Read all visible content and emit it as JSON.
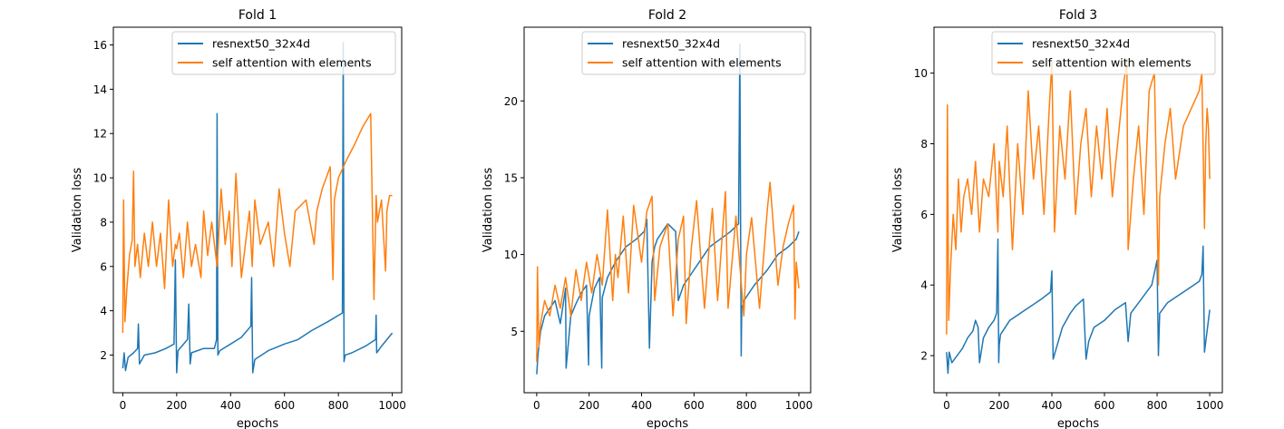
{
  "series_colors": [
    "#1f77b4",
    "#ff7f0e"
  ],
  "chart_data": [
    {
      "type": "line",
      "title": "Fold 1",
      "xlabel": "epochs",
      "ylabel": "Validation loss",
      "xlim": [
        -35,
        1035
      ],
      "ylim": [
        0.3,
        16.8
      ],
      "xticks": [
        0,
        200,
        400,
        600,
        800,
        1000
      ],
      "yticks": [
        2,
        4,
        6,
        8,
        10,
        12,
        14,
        16
      ],
      "legend": [
        "resnext50_32x4d",
        "self attention with elements"
      ],
      "legend_position": "upper right",
      "series": [
        {
          "name": "resnext50_32x4d",
          "x": [
            0,
            5,
            10,
            20,
            40,
            55,
            58,
            62,
            80,
            120,
            160,
            190,
            195,
            200,
            205,
            240,
            245,
            250,
            255,
            300,
            340,
            348,
            350,
            353,
            360,
            400,
            440,
            475,
            478,
            482,
            490,
            540,
            600,
            650,
            700,
            760,
            815,
            818,
            821,
            825,
            850,
            900,
            938,
            940,
            942,
            960,
            1000
          ],
          "y": [
            1.4,
            2.1,
            1.3,
            1.9,
            2.1,
            2.3,
            3.4,
            1.6,
            2.0,
            2.1,
            2.3,
            2.5,
            6.3,
            1.2,
            2.2,
            2.7,
            4.3,
            1.6,
            2.1,
            2.3,
            2.3,
            2.7,
            12.9,
            2.0,
            2.2,
            2.5,
            2.8,
            3.3,
            5.5,
            1.2,
            1.8,
            2.2,
            2.5,
            2.7,
            3.1,
            3.5,
            3.9,
            16.1,
            1.7,
            2.0,
            2.1,
            2.4,
            2.7,
            3.8,
            2.1,
            2.4,
            3.0
          ]
        },
        {
          "name": "self attention with elements",
          "x": [
            0,
            3,
            8,
            15,
            25,
            35,
            40,
            45,
            55,
            65,
            80,
            95,
            110,
            125,
            140,
            155,
            170,
            185,
            195,
            200,
            210,
            225,
            240,
            255,
            270,
            290,
            300,
            315,
            330,
            350,
            365,
            380,
            395,
            405,
            420,
            440,
            460,
            470,
            480,
            490,
            510,
            540,
            560,
            580,
            600,
            620,
            640,
            680,
            710,
            720,
            740,
            770,
            780,
            785,
            800,
            830,
            860,
            890,
            920,
            932,
            940,
            945,
            960,
            975,
            980,
            990,
            1000
          ],
          "y": [
            3.0,
            9.0,
            3.5,
            5.0,
            6.5,
            7.2,
            10.3,
            6.0,
            7.0,
            5.5,
            7.5,
            6.0,
            8.0,
            6.0,
            7.5,
            5.0,
            9.0,
            6.0,
            7.0,
            6.8,
            7.5,
            5.5,
            8.0,
            6.0,
            7.0,
            5.5,
            8.5,
            6.5,
            8.0,
            6.0,
            9.5,
            7.0,
            8.5,
            6.0,
            10.2,
            5.5,
            7.5,
            8.5,
            6.0,
            9.0,
            7.0,
            8.0,
            6.0,
            9.5,
            7.5,
            6.0,
            8.5,
            9.0,
            7.0,
            8.5,
            9.5,
            10.5,
            5.4,
            9.0,
            10.0,
            10.8,
            11.5,
            12.3,
            12.9,
            4.5,
            9.2,
            8.0,
            9.0,
            5.8,
            8.5,
            9.2,
            9.2
          ]
        }
      ]
    },
    {
      "type": "line",
      "title": "Fold 2",
      "xlabel": "epochs",
      "ylabel": "Validation loss",
      "xlim": [
        -48,
        1045
      ],
      "ylim": [
        1.0,
        24.8
      ],
      "xticks": [
        0,
        200,
        400,
        600,
        800,
        1000
      ],
      "yticks": [
        5,
        10,
        15,
        20
      ],
      "legend": [
        "resnext50_32x4d",
        "self attention with elements"
      ],
      "legend_position": "upper right",
      "series": [
        {
          "name": "resnext50_32x4d",
          "x": [
            0,
            5,
            15,
            30,
            50,
            70,
            90,
            110,
            112,
            130,
            150,
            170,
            190,
            198,
            200,
            220,
            240,
            248,
            250,
            270,
            300,
            340,
            380,
            410,
            420,
            430,
            440,
            450,
            460,
            480,
            500,
            530,
            540,
            560,
            580,
            600,
            620,
            640,
            660,
            700,
            740,
            770,
            775,
            778,
            780,
            782,
            790,
            830,
            880,
            920,
            960,
            990,
            1000
          ],
          "y": [
            2.2,
            3.5,
            5.0,
            6.0,
            6.5,
            7.0,
            5.5,
            7.8,
            2.6,
            6.0,
            6.8,
            7.5,
            8.0,
            2.8,
            6.0,
            7.8,
            8.5,
            2.6,
            7.2,
            8.5,
            9.5,
            10.5,
            11.0,
            11.5,
            12.3,
            3.9,
            9.5,
            10.5,
            11.0,
            11.5,
            12.0,
            11.5,
            7.0,
            8.0,
            8.5,
            9.0,
            9.5,
            10.0,
            10.5,
            11.0,
            11.5,
            12.0,
            23.7,
            11.0,
            3.4,
            6.5,
            7.0,
            8.0,
            9.0,
            10.0,
            10.5,
            11.0,
            11.5
          ]
        },
        {
          "name": "self attention with elements",
          "x": [
            0,
            3,
            8,
            15,
            30,
            50,
            70,
            90,
            110,
            130,
            150,
            170,
            190,
            210,
            230,
            250,
            270,
            290,
            300,
            310,
            330,
            350,
            370,
            400,
            420,
            440,
            450,
            470,
            500,
            520,
            540,
            560,
            570,
            590,
            610,
            640,
            660,
            670,
            690,
            720,
            730,
            760,
            790,
            800,
            820,
            850,
            880,
            890,
            920,
            940,
            960,
            980,
            985,
            990,
            1000
          ],
          "y": [
            3.0,
            9.2,
            4.0,
            5.5,
            7.0,
            6.0,
            8.0,
            6.5,
            8.5,
            6.0,
            9.0,
            7.0,
            9.5,
            7.5,
            10.0,
            8.0,
            12.9,
            7.0,
            10.0,
            8.5,
            12.5,
            7.5,
            13.2,
            9.5,
            12.8,
            13.8,
            7.0,
            10.5,
            12.0,
            6.0,
            11.0,
            12.5,
            5.5,
            10.5,
            13.5,
            6.5,
            11.0,
            13.0,
            7.0,
            14.1,
            6.5,
            12.5,
            6.0,
            10.0,
            12.4,
            6.5,
            13.0,
            14.7,
            8.0,
            10.5,
            12.0,
            13.2,
            5.8,
            9.5,
            7.8
          ]
        }
      ]
    },
    {
      "type": "line",
      "title": "Fold 3",
      "xlabel": "epochs",
      "ylabel": "Validation loss",
      "xlim": [
        -48,
        1048
      ],
      "ylim": [
        0.95,
        11.3
      ],
      "xticks": [
        0,
        200,
        400,
        600,
        800,
        1000
      ],
      "yticks": [
        2,
        4,
        6,
        8,
        10
      ],
      "legend": [
        "resnext50_32x4d",
        "self attention with elements"
      ],
      "legend_position": "upper right",
      "series": [
        {
          "name": "resnext50_32x4d",
          "x": [
            0,
            5,
            10,
            20,
            40,
            60,
            80,
            100,
            110,
            120,
            125,
            140,
            160,
            180,
            190,
            195,
            198,
            200,
            205,
            240,
            280,
            320,
            360,
            395,
            400,
            405,
            440,
            470,
            490,
            520,
            530,
            540,
            560,
            600,
            640,
            680,
            690,
            700,
            740,
            780,
            800,
            805,
            810,
            840,
            880,
            920,
            960,
            970,
            975,
            980,
            1000
          ],
          "y": [
            2.1,
            1.5,
            2.1,
            1.8,
            2.0,
            2.2,
            2.5,
            2.7,
            3.0,
            2.8,
            1.8,
            2.5,
            2.8,
            3.0,
            3.2,
            5.3,
            1.8,
            2.3,
            2.6,
            3.0,
            3.2,
            3.4,
            3.6,
            3.8,
            4.4,
            1.9,
            2.8,
            3.2,
            3.4,
            3.6,
            1.9,
            2.4,
            2.8,
            3.0,
            3.3,
            3.5,
            2.4,
            3.2,
            3.6,
            4.0,
            4.7,
            2.0,
            3.2,
            3.5,
            3.7,
            3.9,
            4.1,
            4.3,
            5.1,
            2.1,
            3.3
          ]
        },
        {
          "name": "self attention with elements",
          "x": [
            0,
            3,
            8,
            15,
            25,
            35,
            45,
            55,
            65,
            80,
            95,
            110,
            125,
            140,
            160,
            180,
            195,
            200,
            215,
            230,
            250,
            270,
            290,
            310,
            330,
            350,
            370,
            390,
            400,
            410,
            430,
            450,
            470,
            490,
            510,
            530,
            550,
            570,
            590,
            610,
            630,
            650,
            670,
            685,
            690,
            710,
            730,
            750,
            770,
            790,
            805,
            810,
            830,
            850,
            870,
            900,
            930,
            960,
            970,
            980,
            985,
            990,
            995,
            1000
          ],
          "y": [
            2.6,
            9.1,
            3.0,
            4.5,
            6.0,
            5.0,
            7.0,
            5.5,
            6.5,
            7.0,
            6.0,
            7.5,
            5.5,
            7.0,
            6.5,
            8.0,
            5.5,
            7.5,
            6.5,
            8.5,
            5.0,
            8.0,
            6.0,
            9.5,
            7.0,
            8.5,
            6.0,
            9.0,
            10.3,
            5.5,
            8.5,
            7.0,
            9.5,
            6.0,
            8.0,
            9.0,
            6.5,
            8.5,
            7.0,
            9.0,
            6.5,
            8.0,
            9.5,
            10.4,
            5.0,
            7.0,
            8.5,
            6.0,
            9.5,
            10.0,
            4.0,
            6.5,
            8.0,
            9.0,
            7.0,
            8.5,
            9.0,
            9.5,
            10.0,
            5.6,
            8.0,
            9.0,
            8.5,
            7.0
          ]
        }
      ]
    }
  ]
}
